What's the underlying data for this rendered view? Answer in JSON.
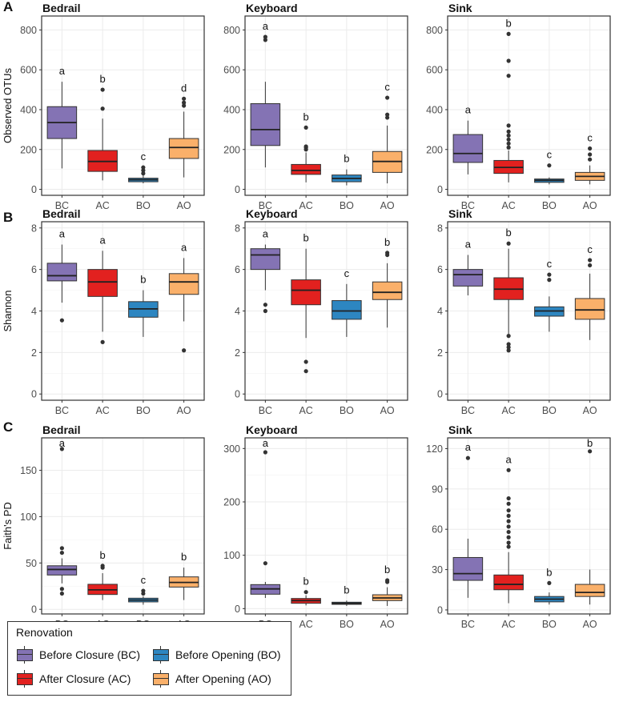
{
  "colors": {
    "BC": "#8473B4",
    "AC": "#E2211F",
    "BO": "#2D86C1",
    "AO": "#FAB06A"
  },
  "categories": [
    "BC",
    "AC",
    "BO",
    "AO"
  ],
  "chart_data": [
    {
      "type": "box",
      "row": "A",
      "title": "Bedrail",
      "ylabel": "Observed OTUs",
      "ylim": [
        -30,
        870
      ],
      "yticks": [
        0,
        200,
        400,
        600,
        800
      ],
      "boxes": [
        {
          "cat": "BC",
          "min": 105,
          "q1": 255,
          "median": 335,
          "q3": 415,
          "max": 540,
          "outliers": [],
          "letter": "a"
        },
        {
          "cat": "AC",
          "min": 45,
          "q1": 90,
          "median": 140,
          "q3": 195,
          "max": 355,
          "outliers": [
            405,
            500
          ],
          "letter": "b"
        },
        {
          "cat": "BO",
          "min": 30,
          "q1": 38,
          "median": 48,
          "q3": 56,
          "max": 70,
          "outliers": [
            80,
            95,
            110
          ],
          "letter": "c"
        },
        {
          "cat": "AO",
          "min": 60,
          "q1": 155,
          "median": 210,
          "q3": 255,
          "max": 390,
          "outliers": [
            420,
            435,
            455
          ],
          "letter": "d"
        }
      ]
    },
    {
      "type": "box",
      "row": "A",
      "title": "Keyboard",
      "ylabel": "",
      "ylim": [
        -30,
        870
      ],
      "yticks": [
        0,
        200,
        400,
        600,
        800
      ],
      "boxes": [
        {
          "cat": "BC",
          "min": 110,
          "q1": 220,
          "median": 300,
          "q3": 430,
          "max": 540,
          "outliers": [
            750,
            765
          ],
          "letter": "a"
        },
        {
          "cat": "AC",
          "min": 35,
          "q1": 75,
          "median": 95,
          "q3": 125,
          "max": 185,
          "outliers": [
            200,
            210,
            215,
            310
          ],
          "letter": "b"
        },
        {
          "cat": "BO",
          "min": 20,
          "q1": 38,
          "median": 55,
          "q3": 72,
          "max": 100,
          "outliers": [],
          "letter": "b"
        },
        {
          "cat": "AO",
          "min": 30,
          "q1": 85,
          "median": 140,
          "q3": 190,
          "max": 320,
          "outliers": [
            360,
            375,
            460
          ],
          "letter": "c"
        }
      ]
    },
    {
      "type": "box",
      "row": "A",
      "title": "Sink",
      "ylabel": "",
      "ylim": [
        -30,
        870
      ],
      "yticks": [
        0,
        200,
        400,
        600,
        800
      ],
      "boxes": [
        {
          "cat": "BC",
          "min": 75,
          "q1": 135,
          "median": 180,
          "q3": 275,
          "max": 345,
          "outliers": [],
          "letter": "a"
        },
        {
          "cat": "AC",
          "min": 35,
          "q1": 80,
          "median": 110,
          "q3": 145,
          "max": 195,
          "outliers": [
            210,
            230,
            250,
            270,
            290,
            320,
            570,
            645,
            780
          ],
          "letter": "b"
        },
        {
          "cat": "BO",
          "min": 25,
          "q1": 35,
          "median": 45,
          "q3": 52,
          "max": 60,
          "outliers": [
            120
          ],
          "letter": "c"
        },
        {
          "cat": "AO",
          "min": 25,
          "q1": 45,
          "median": 65,
          "q3": 85,
          "max": 120,
          "outliers": [
            150,
            175,
            205
          ],
          "letter": "c"
        }
      ]
    },
    {
      "type": "box",
      "row": "B",
      "title": "Bedrail",
      "ylabel": "Shannon",
      "ylim": [
        -0.3,
        8.3
      ],
      "yticks": [
        0,
        2,
        4,
        6,
        8
      ],
      "boxes": [
        {
          "cat": "BC",
          "min": 4.4,
          "q1": 5.45,
          "median": 5.7,
          "q3": 6.3,
          "max": 7.2,
          "outliers": [
            3.55
          ],
          "letter": "a"
        },
        {
          "cat": "AC",
          "min": 3.0,
          "q1": 4.7,
          "median": 5.4,
          "q3": 6.0,
          "max": 6.9,
          "outliers": [
            2.5
          ],
          "letter": "a"
        },
        {
          "cat": "BO",
          "min": 2.75,
          "q1": 3.7,
          "median": 4.1,
          "q3": 4.45,
          "max": 5.0,
          "outliers": [],
          "letter": "b"
        },
        {
          "cat": "AO",
          "min": 3.5,
          "q1": 4.8,
          "median": 5.4,
          "q3": 5.8,
          "max": 6.55,
          "outliers": [
            2.1
          ],
          "letter": "a"
        }
      ]
    },
    {
      "type": "box",
      "row": "B",
      "title": "Keyboard",
      "ylabel": "",
      "ylim": [
        -0.3,
        8.3
      ],
      "yticks": [
        0,
        2,
        4,
        6,
        8
      ],
      "boxes": [
        {
          "cat": "BC",
          "min": 5.0,
          "q1": 6.0,
          "median": 6.7,
          "q3": 7.0,
          "max": 7.2,
          "outliers": [
            4.0,
            4.3
          ],
          "letter": "a"
        },
        {
          "cat": "AC",
          "min": 2.7,
          "q1": 4.3,
          "median": 5.0,
          "q3": 5.5,
          "max": 7.0,
          "outliers": [
            1.1,
            1.55
          ],
          "letter": "b"
        },
        {
          "cat": "BO",
          "min": 2.75,
          "q1": 3.6,
          "median": 4.0,
          "q3": 4.5,
          "max": 5.3,
          "outliers": [],
          "letter": "c"
        },
        {
          "cat": "AO",
          "min": 3.2,
          "q1": 4.55,
          "median": 4.9,
          "q3": 5.4,
          "max": 6.3,
          "outliers": [
            6.7,
            6.8
          ],
          "letter": "b"
        }
      ]
    },
    {
      "type": "box",
      "row": "B",
      "title": "Sink",
      "ylabel": "",
      "ylim": [
        -0.3,
        8.3
      ],
      "yticks": [
        0,
        2,
        4,
        6,
        8
      ],
      "boxes": [
        {
          "cat": "BC",
          "min": 4.75,
          "q1": 5.2,
          "median": 5.75,
          "q3": 6.0,
          "max": 6.7,
          "outliers": [],
          "letter": "a"
        },
        {
          "cat": "AC",
          "min": 2.9,
          "q1": 4.55,
          "median": 5.05,
          "q3": 5.6,
          "max": 7.0,
          "outliers": [
            2.1,
            2.25,
            2.4,
            2.8,
            7.25
          ],
          "letter": "b"
        },
        {
          "cat": "BO",
          "min": 3.0,
          "q1": 3.75,
          "median": 4.0,
          "q3": 4.2,
          "max": 4.7,
          "outliers": [
            5.5,
            5.75
          ],
          "letter": "c"
        },
        {
          "cat": "AO",
          "min": 2.6,
          "q1": 3.6,
          "median": 4.05,
          "q3": 4.6,
          "max": 5.8,
          "outliers": [
            6.2,
            6.45
          ],
          "letter": "c"
        }
      ]
    },
    {
      "type": "box",
      "row": "C",
      "title": "Bedrail",
      "ylabel": "Faith's PD",
      "ylim": [
        -5,
        185
      ],
      "yticks": [
        0,
        50,
        100,
        150
      ],
      "boxes": [
        {
          "cat": "BC",
          "min": 28,
          "q1": 37,
          "median": 43,
          "q3": 47,
          "max": 55,
          "outliers": [
            17,
            22,
            61,
            66,
            173
          ],
          "letter": "a"
        },
        {
          "cat": "AC",
          "min": 10,
          "q1": 16,
          "median": 21,
          "q3": 27,
          "max": 39,
          "outliers": [
            45,
            47
          ],
          "letter": "b"
        },
        {
          "cat": "BO",
          "min": 5,
          "q1": 8,
          "median": 10,
          "q3": 12,
          "max": 14,
          "outliers": [
            17,
            20
          ],
          "letter": "c"
        },
        {
          "cat": "AO",
          "min": 10,
          "q1": 24,
          "median": 29,
          "q3": 35,
          "max": 45,
          "outliers": [],
          "letter": "b"
        }
      ]
    },
    {
      "type": "box",
      "row": "C",
      "title": "Keyboard",
      "ylabel": "",
      "ylim": [
        -10,
        320
      ],
      "yticks": [
        0,
        100,
        200,
        300
      ],
      "boxes": [
        {
          "cat": "BC",
          "min": 20,
          "q1": 27,
          "median": 37,
          "q3": 45,
          "max": 50,
          "outliers": [
            85,
            293
          ],
          "letter": "a"
        },
        {
          "cat": "AC",
          "min": 6,
          "q1": 10,
          "median": 15,
          "q3": 19,
          "max": 25,
          "outliers": [
            31
          ],
          "letter": "b"
        },
        {
          "cat": "BO",
          "min": 5,
          "q1": 8,
          "median": 10,
          "q3": 12,
          "max": 15,
          "outliers": [],
          "letter": "b"
        },
        {
          "cat": "AO",
          "min": 5,
          "q1": 15,
          "median": 20,
          "q3": 26,
          "max": 40,
          "outliers": [
            50,
            53
          ],
          "letter": "b"
        }
      ]
    },
    {
      "type": "box",
      "row": "C",
      "title": "Sink",
      "ylabel": "",
      "ylim": [
        -3,
        128
      ],
      "yticks": [
        0,
        30,
        60,
        90,
        120
      ],
      "boxes": [
        {
          "cat": "BC",
          "min": 9,
          "q1": 22,
          "median": 27,
          "q3": 39,
          "max": 53,
          "outliers": [
            113
          ],
          "letter": "a"
        },
        {
          "cat": "AC",
          "min": 5,
          "q1": 15,
          "median": 19,
          "q3": 26,
          "max": 43,
          "outliers": [
            47,
            50,
            54,
            58,
            62,
            66,
            70,
            74,
            79,
            83,
            104
          ],
          "letter": "a"
        },
        {
          "cat": "BO",
          "min": 4,
          "q1": 6,
          "median": 8,
          "q3": 10,
          "max": 13,
          "outliers": [
            20
          ],
          "letter": "b"
        },
        {
          "cat": "AO",
          "min": 4,
          "q1": 10,
          "median": 13,
          "q3": 19,
          "max": 30,
          "outliers": [
            118
          ],
          "letter": "b"
        }
      ]
    }
  ],
  "panel_labels": [
    "A",
    "B",
    "C"
  ],
  "legend": {
    "title": "Renovation",
    "items": [
      {
        "key": "BC",
        "label": "Before Closure (BC)"
      },
      {
        "key": "AC",
        "label": "After Closure (AC)"
      },
      {
        "key": "BO",
        "label": "Before Opening (BO)"
      },
      {
        "key": "AO",
        "label": "After Opening (AO)"
      }
    ]
  }
}
